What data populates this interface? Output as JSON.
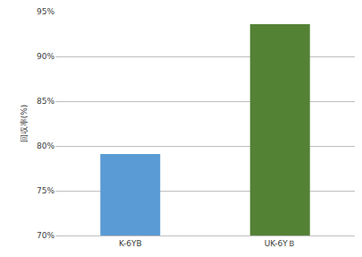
{
  "chart_data": {
    "type": "bar",
    "y_label": "回収率(%)",
    "categories": [
      "K-6YB",
      "UK-6YＢ"
    ],
    "values": [
      79.1,
      93.6
    ],
    "colors": [
      "#5b9bd5",
      "#548235"
    ],
    "ylim": [
      70,
      95
    ],
    "yticks": [
      {
        "value": 70,
        "label": "70%"
      },
      {
        "value": 75,
        "label": "75%"
      },
      {
        "value": 80,
        "label": "80%"
      },
      {
        "value": 85,
        "label": "85%"
      },
      {
        "value": 90,
        "label": "90%"
      },
      {
        "value": 95,
        "label": "95%"
      }
    ],
    "grid": true
  }
}
